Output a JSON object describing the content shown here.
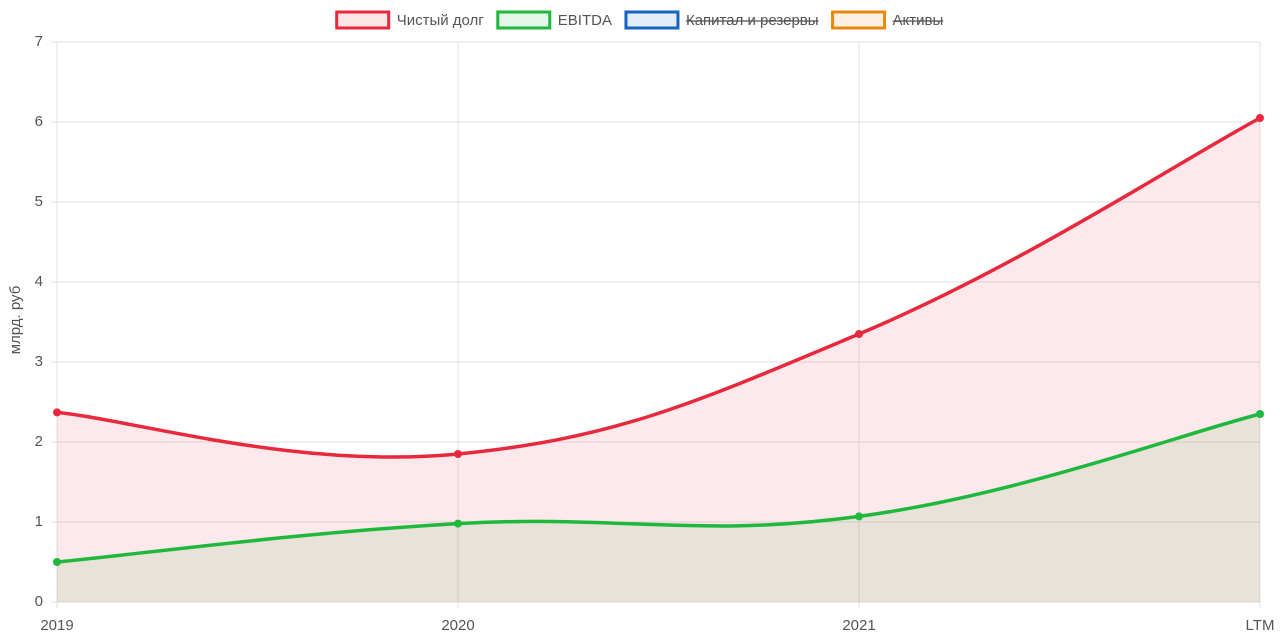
{
  "chart_data": {
    "type": "line",
    "y_label": "млрд. руб",
    "categories": [
      "2019",
      "2020",
      "2021",
      "LTM"
    ],
    "series": [
      {
        "name": "Чистый долг",
        "color": "#e8283c",
        "values": [
          2.37,
          1.85,
          3.35,
          6.05
        ],
        "fill": true,
        "hidden": false
      },
      {
        "name": "EBITDA",
        "color": "#1db83c",
        "values": [
          0.5,
          0.98,
          1.07,
          2.35
        ],
        "fill": true,
        "hidden": false
      },
      {
        "name": "Капитал и резервы",
        "color": "#1565c0",
        "values": [
          null,
          null,
          null,
          null
        ],
        "fill": true,
        "hidden": true
      },
      {
        "name": "Активы",
        "color": "#e8890c",
        "values": [
          null,
          null,
          null,
          null
        ],
        "fill": true,
        "hidden": true
      }
    ],
    "ylim": [
      0,
      7
    ],
    "yticks": [
      0,
      1,
      2,
      3,
      4,
      5,
      6,
      7
    ],
    "grid": true,
    "legend": "top",
    "smooth": true
  }
}
